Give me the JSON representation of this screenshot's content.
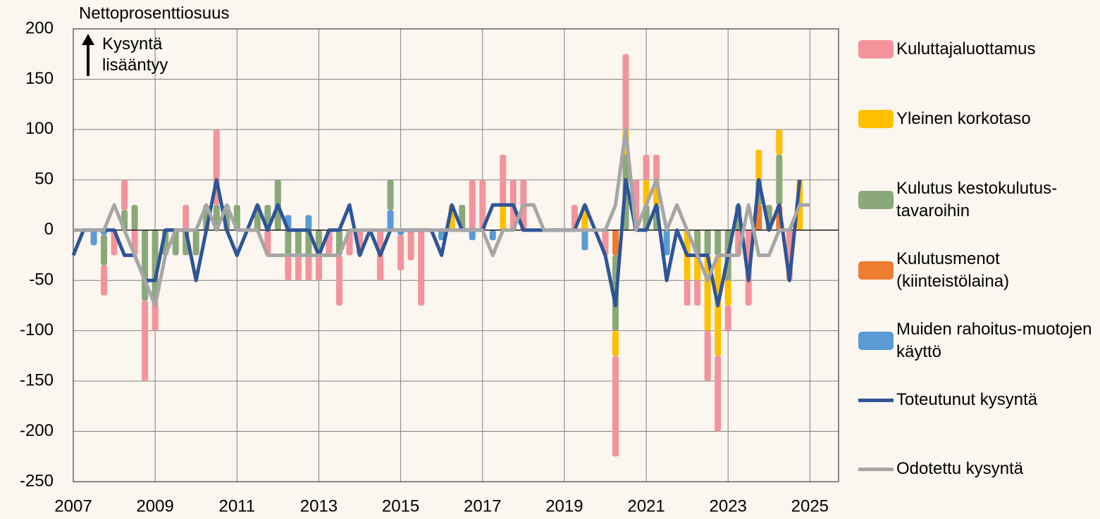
{
  "chart_data": {
    "type": "bar",
    "y_label": "Nettoprosenttiosuus",
    "annotation": "Kysyntä lisääntyy",
    "x": [
      2007,
      2007.25,
      2007.5,
      2007.75,
      2008,
      2008.25,
      2008.5,
      2008.75,
      2009,
      2009.25,
      2009.5,
      2009.75,
      2010,
      2010.25,
      2010.5,
      2010.75,
      2011,
      2011.25,
      2011.5,
      2011.75,
      2012,
      2012.25,
      2012.5,
      2012.75,
      2013,
      2013.25,
      2013.5,
      2013.75,
      2014,
      2014.25,
      2014.5,
      2014.75,
      2015,
      2015.25,
      2015.5,
      2015.75,
      2016,
      2016.25,
      2016.5,
      2016.75,
      2017,
      2017.25,
      2017.5,
      2017.75,
      2018,
      2018.25,
      2018.5,
      2018.75,
      2019,
      2019.25,
      2019.5,
      2019.75,
      2020,
      2020.25,
      2020.5,
      2020.75,
      2021,
      2021.25,
      2021.5,
      2021.75,
      2022,
      2022.25,
      2022.5,
      2022.75,
      2023,
      2023.25,
      2023.5,
      2023.75,
      2024,
      2024.25,
      2024.5,
      2024.75,
      2025
    ],
    "xlim": [
      2007,
      2025.7
    ],
    "xticks": [
      2007,
      2009,
      2011,
      2013,
      2015,
      2017,
      2019,
      2021,
      2023,
      2025
    ],
    "ylim": [
      -250,
      200
    ],
    "yticks": [
      -250,
      -200,
      -150,
      -100,
      -50,
      0,
      50,
      100,
      150,
      200
    ],
    "grid": true,
    "series": [
      {
        "name": "Kuluttajaluottamus",
        "type": "bar",
        "color": "#f4939b",
        "values": [
          0,
          0,
          0,
          -30,
          -25,
          30,
          -25,
          -80,
          -30,
          0,
          0,
          25,
          0,
          0,
          75,
          0,
          0,
          0,
          0,
          -25,
          0,
          -25,
          -25,
          -25,
          -25,
          -25,
          -50,
          -25,
          -25,
          0,
          -50,
          0,
          -35,
          -30,
          -75,
          0,
          0,
          0,
          0,
          50,
          50,
          0,
          50,
          50,
          50,
          0,
          0,
          0,
          0,
          25,
          0,
          0,
          -25,
          -100,
          75,
          50,
          25,
          25,
          0,
          0,
          -25,
          -25,
          -50,
          -75,
          -25,
          -25,
          -75,
          0,
          0,
          0,
          -50,
          0,
          0
        ]
      },
      {
        "name": "Yleinen korkotaso",
        "type": "bar",
        "color": "#ffc000",
        "values": [
          0,
          0,
          0,
          0,
          0,
          0,
          0,
          0,
          0,
          0,
          0,
          0,
          0,
          0,
          0,
          0,
          0,
          0,
          0,
          0,
          0,
          0,
          0,
          0,
          0,
          0,
          0,
          0,
          0,
          0,
          0,
          0,
          0,
          0,
          0,
          0,
          0,
          25,
          0,
          0,
          0,
          0,
          25,
          0,
          0,
          0,
          0,
          0,
          0,
          0,
          25,
          0,
          0,
          -25,
          25,
          0,
          25,
          25,
          0,
          0,
          -50,
          -25,
          -75,
          -100,
          -25,
          0,
          0,
          30,
          0,
          25,
          0,
          50,
          0
        ]
      },
      {
        "name": "Kulutus kestokulutus-tavaroihin",
        "type": "bar",
        "color": "#8ba87a",
        "values": [
          0,
          0,
          0,
          -30,
          0,
          20,
          25,
          -70,
          -70,
          -25,
          -25,
          -25,
          -25,
          25,
          25,
          25,
          25,
          0,
          25,
          25,
          50,
          -25,
          -25,
          -25,
          -25,
          0,
          -25,
          0,
          0,
          0,
          0,
          30,
          0,
          0,
          0,
          0,
          0,
          0,
          25,
          0,
          0,
          0,
          0,
          0,
          0,
          0,
          0,
          0,
          0,
          0,
          0,
          0,
          0,
          -75,
          75,
          0,
          25,
          25,
          0,
          0,
          0,
          -25,
          -25,
          -25,
          -50,
          25,
          0,
          25,
          25,
          50,
          0,
          0,
          0
        ]
      },
      {
        "name": "Kulutusmenot (kiinteistölaina)",
        "type": "bar",
        "color": "#ed7d31",
        "values": [
          0,
          0,
          0,
          0,
          0,
          0,
          0,
          0,
          0,
          0,
          0,
          0,
          0,
          0,
          0,
          0,
          0,
          0,
          0,
          0,
          0,
          0,
          0,
          0,
          0,
          0,
          0,
          0,
          0,
          0,
          0,
          0,
          0,
          0,
          0,
          0,
          0,
          0,
          0,
          0,
          0,
          0,
          0,
          0,
          0,
          0,
          0,
          0,
          0,
          0,
          0,
          0,
          0,
          -25,
          0,
          0,
          0,
          0,
          0,
          0,
          0,
          0,
          0,
          0,
          0,
          0,
          0,
          25,
          0,
          25,
          0,
          0,
          0
        ]
      },
      {
        "name": "Muiden rahoitus-muotojen käyttö",
        "type": "bar",
        "color": "#5b9bd5",
        "values": [
          0,
          0,
          -15,
          -5,
          0,
          0,
          0,
          0,
          0,
          0,
          0,
          0,
          0,
          0,
          0,
          0,
          0,
          0,
          0,
          0,
          0,
          15,
          0,
          15,
          0,
          0,
          0,
          0,
          0,
          0,
          0,
          20,
          -5,
          0,
          0,
          0,
          -10,
          0,
          0,
          -10,
          0,
          -10,
          0,
          0,
          0,
          0,
          0,
          0,
          0,
          0,
          -20,
          0,
          0,
          0,
          0,
          0,
          0,
          0,
          -25,
          0,
          0,
          0,
          0,
          0,
          0,
          0,
          0,
          0,
          0,
          0,
          0,
          0,
          0
        ]
      },
      {
        "name": "Toteutunut kysyntä",
        "type": "line",
        "color": "#2e5597",
        "values": [
          -25,
          0,
          0,
          0,
          0,
          -25,
          -25,
          -50,
          -50,
          0,
          0,
          0,
          -50,
          0,
          50,
          0,
          -25,
          0,
          25,
          0,
          25,
          0,
          0,
          0,
          -25,
          0,
          0,
          25,
          -25,
          0,
          -25,
          0,
          0,
          0,
          0,
          0,
          -25,
          25,
          0,
          0,
          0,
          25,
          25,
          25,
          0,
          0,
          0,
          0,
          0,
          0,
          25,
          0,
          -25,
          -75,
          50,
          0,
          0,
          25,
          -50,
          0,
          -25,
          -25,
          -25,
          -75,
          -25,
          25,
          -50,
          50,
          0,
          25,
          -50,
          50,
          null
        ]
      },
      {
        "name": "Odotettu kysyntä",
        "type": "line",
        "color": "#a6a6a6",
        "values": [
          0,
          0,
          0,
          0,
          25,
          0,
          -25,
          -50,
          -75,
          -25,
          0,
          0,
          0,
          25,
          0,
          25,
          0,
          0,
          0,
          -25,
          -25,
          -25,
          -25,
          -25,
          -25,
          -25,
          -25,
          0,
          0,
          0,
          0,
          0,
          0,
          0,
          0,
          0,
          0,
          0,
          0,
          0,
          0,
          -25,
          0,
          0,
          25,
          25,
          0,
          0,
          0,
          0,
          0,
          0,
          0,
          25,
          100,
          0,
          25,
          50,
          0,
          25,
          0,
          -25,
          -50,
          -25,
          -25,
          -25,
          25,
          -25,
          -25,
          0,
          0,
          25,
          25
        ]
      }
    ]
  }
}
